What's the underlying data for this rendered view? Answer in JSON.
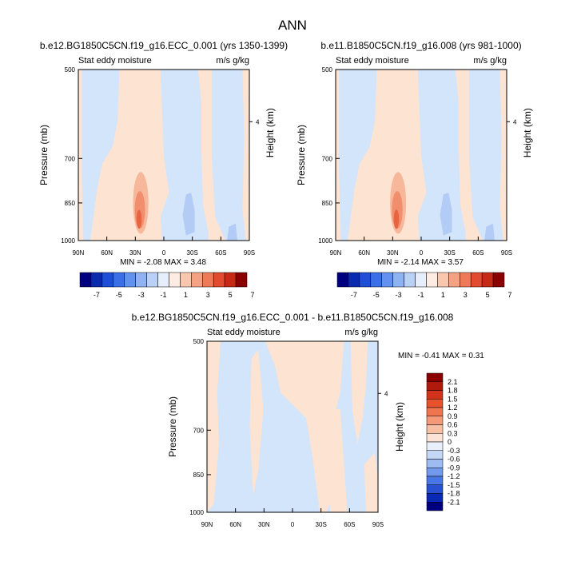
{
  "figure_title": "ANN",
  "colors": {
    "warm_light": "#fde3d2",
    "warm_mid": "#f7b79a",
    "warm_dark": "#f08e6e",
    "warm_core": "#e7643f",
    "cool_light": "#d3e5fb",
    "cool_mid": "#b3ccf5",
    "cool_dark": "#8eb0ef"
  },
  "chart_data": [
    {
      "type": "heatmap",
      "title": "b.e12.BG1850C5CN.f19_g16.ECC_0.001 (yrs 1350-1399)",
      "left_string": "Stat eddy moisture",
      "right_string": "m/s g/kg",
      "ylabel": "Pressure (mb)",
      "ylabel_right": "Height (km)",
      "y_ticks": [
        "500",
        "700",
        "850",
        "1000"
      ],
      "y_right_ticks": [
        "4"
      ],
      "x_ticks": [
        "90N",
        "60N",
        "30N",
        "0",
        "30S",
        "60S",
        "90S"
      ],
      "stats": "MIN =  -2.08  MAX =   3.48",
      "min": -2.08,
      "max": 3.48
    },
    {
      "type": "heatmap",
      "title": "b.e11.B1850C5CN.f19_g16.008 (yrs 981-1000)",
      "left_string": "Stat eddy moisture",
      "right_string": "m/s g/kg",
      "ylabel": "Pressure (mb)",
      "ylabel_right": "Height (km)",
      "y_ticks": [
        "500",
        "700",
        "850",
        "1000"
      ],
      "y_right_ticks": [
        "4"
      ],
      "x_ticks": [
        "90N",
        "60N",
        "30N",
        "0",
        "30S",
        "60S",
        "90S"
      ],
      "stats": "MIN =  -2.14  MAX =   3.57",
      "min": -2.14,
      "max": 3.57
    },
    {
      "type": "heatmap",
      "title": "b.e12.BG1850C5CN.f19_g16.ECC_0.001 - b.e11.B1850C5CN.f19_g16.008",
      "left_string": "Stat eddy moisture",
      "right_string": "m/s g/kg",
      "ylabel": "Pressure (mb)",
      "ylabel_right": "Height (km)",
      "y_ticks": [
        "500",
        "700",
        "850",
        "1000"
      ],
      "y_right_ticks": [
        "4"
      ],
      "x_ticks": [
        "90N",
        "60N",
        "30N",
        "0",
        "30S",
        "60S",
        "90S"
      ],
      "stats": "MIN =  -0.41  MAX =   0.31",
      "min": -0.41,
      "max": 0.31
    }
  ],
  "colorbar_top": {
    "labels": [
      "-7",
      "-5",
      "-3",
      "-1",
      "1",
      "3",
      "5",
      "7"
    ],
    "colors": [
      "#00007f",
      "#0a2bb0",
      "#1e4fd6",
      "#3a6fe8",
      "#6391ef",
      "#8fb2f3",
      "#b9d0f7",
      "#e6eefb",
      "#fdece3",
      "#f9c7ae",
      "#f4a283",
      "#ee7a58",
      "#e24b2f",
      "#c62a15",
      "#8b0000"
    ]
  },
  "colorbar_diff": {
    "labels": [
      "2.1",
      "1.8",
      "1.5",
      "1.2",
      "0.9",
      "0.6",
      "0.3",
      "0",
      "-0.3",
      "-0.6",
      "-0.9",
      "-1.2",
      "-1.5",
      "-1.8",
      "-2.1"
    ],
    "colors": [
      "#8b0000",
      "#b01a0c",
      "#d2321b",
      "#e6522c",
      "#ef7550",
      "#f49a78",
      "#f8bfa3",
      "#fde3d5",
      "#e9f0fb",
      "#c4d7f7",
      "#9dbcf2",
      "#7199ec",
      "#4876e4",
      "#2751d2",
      "#0a2ab5",
      "#00007f"
    ]
  }
}
